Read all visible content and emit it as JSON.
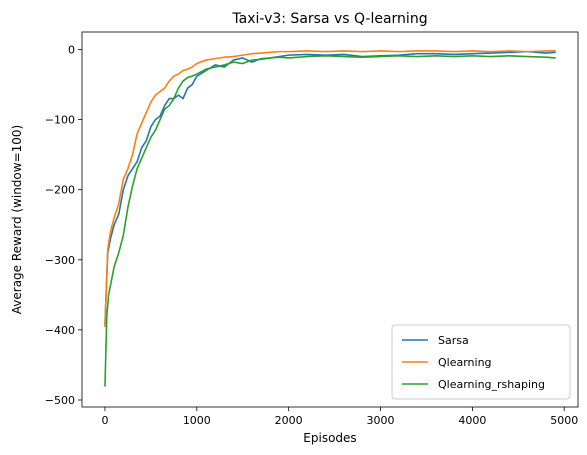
{
  "chart_data": {
    "type": "line",
    "title": "Taxi-v3: Sarsa vs Q-learning",
    "xlabel": "Episodes",
    "ylabel": "Average Reward (window=100)",
    "xlim": [
      -250,
      5150
    ],
    "ylim": [
      -510,
      25
    ],
    "xticks": [
      0,
      1000,
      2000,
      3000,
      4000,
      5000
    ],
    "yticks": [
      -500,
      -400,
      -300,
      -200,
      -100,
      0
    ],
    "grid": false,
    "legend_position": "lower right",
    "series": [
      {
        "name": "Sarsa",
        "color": "#1f77b4",
        "x": [
          0,
          30,
          60,
          100,
          150,
          200,
          250,
          300,
          350,
          400,
          450,
          500,
          550,
          600,
          650,
          700,
          750,
          800,
          850,
          900,
          950,
          1000,
          1100,
          1200,
          1300,
          1400,
          1500,
          1600,
          1700,
          1800,
          1900,
          2000,
          2200,
          2400,
          2600,
          2800,
          3000,
          3200,
          3400,
          3600,
          3800,
          4000,
          4200,
          4400,
          4600,
          4800,
          4900
        ],
        "y": [
          -392,
          -290,
          -270,
          -250,
          -235,
          -200,
          -180,
          -170,
          -160,
          -140,
          -130,
          -110,
          -100,
          -95,
          -80,
          -70,
          -70,
          -65,
          -70,
          -55,
          -50,
          -38,
          -30,
          -22,
          -25,
          -15,
          -12,
          -18,
          -13,
          -12,
          -10,
          -8,
          -7,
          -8,
          -7,
          -10,
          -9,
          -8,
          -6,
          -6,
          -7,
          -6,
          -5,
          -4,
          -3,
          -5,
          -4
        ]
      },
      {
        "name": "Qlearning",
        "color": "#ff7f0e",
        "x": [
          0,
          30,
          60,
          100,
          150,
          200,
          250,
          300,
          350,
          400,
          450,
          500,
          550,
          600,
          650,
          700,
          750,
          800,
          850,
          900,
          950,
          1000,
          1100,
          1200,
          1300,
          1400,
          1500,
          1600,
          1700,
          1800,
          1900,
          2000,
          2200,
          2400,
          2600,
          2800,
          3000,
          3200,
          3400,
          3600,
          3800,
          4000,
          4200,
          4400,
          4600,
          4800,
          4900
        ],
        "y": [
          -395,
          -285,
          -260,
          -240,
          -220,
          -185,
          -170,
          -150,
          -120,
          -105,
          -90,
          -75,
          -65,
          -60,
          -55,
          -45,
          -38,
          -35,
          -30,
          -28,
          -25,
          -20,
          -15,
          -13,
          -11,
          -10,
          -8,
          -6,
          -5,
          -4,
          -3,
          -3,
          -2,
          -3,
          -2,
          -3,
          -2,
          -3,
          -2,
          -2,
          -3,
          -2,
          -3,
          -2,
          -3,
          -2,
          -2
        ]
      },
      {
        "name": "Qlearning_rshaping",
        "color": "#2ca02c",
        "x": [
          0,
          20,
          40,
          70,
          100,
          150,
          200,
          250,
          300,
          350,
          400,
          450,
          500,
          550,
          600,
          650,
          700,
          750,
          800,
          850,
          900,
          950,
          1000,
          1100,
          1200,
          1300,
          1400,
          1500,
          1600,
          1700,
          1800,
          1900,
          2000,
          2200,
          2400,
          2600,
          2800,
          3000,
          3200,
          3400,
          3600,
          3800,
          4000,
          4200,
          4400,
          4600,
          4800,
          4900
        ],
        "y": [
          -480,
          -380,
          -350,
          -330,
          -310,
          -290,
          -265,
          -225,
          -195,
          -170,
          -155,
          -140,
          -125,
          -115,
          -100,
          -85,
          -80,
          -70,
          -55,
          -45,
          -40,
          -38,
          -35,
          -28,
          -25,
          -22,
          -18,
          -20,
          -15,
          -14,
          -12,
          -11,
          -12,
          -10,
          -9,
          -10,
          -11,
          -10,
          -9,
          -10,
          -9,
          -10,
          -9,
          -10,
          -9,
          -10,
          -11,
          -12
        ]
      }
    ]
  }
}
